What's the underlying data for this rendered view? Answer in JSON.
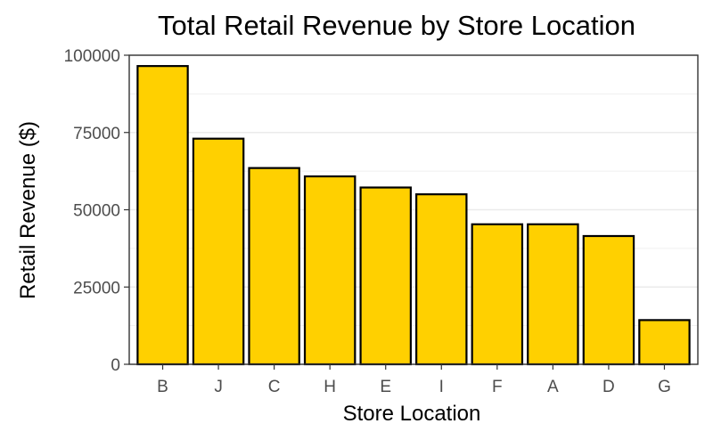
{
  "chart_data": {
    "type": "bar",
    "title": "Total Retail Revenue by Store Location",
    "xlabel": "Store Location",
    "ylabel": "Retail Revenue ($)",
    "categories": [
      "B",
      "J",
      "C",
      "H",
      "E",
      "I",
      "F",
      "A",
      "D",
      "G"
    ],
    "values": [
      96500,
      73000,
      63500,
      60800,
      57200,
      55000,
      45300,
      45300,
      41500,
      14300
    ],
    "ylim": [
      0,
      100000
    ],
    "yticks": [
      "0",
      "25000",
      "50000",
      "75000",
      "100000"
    ],
    "ytick_values": [
      0,
      25000,
      50000,
      75000,
      100000
    ],
    "grid": true,
    "legend": "none",
    "bar_fill": "#ffd000",
    "bar_stroke": "#000000",
    "grid_color": "#ebebeb",
    "panel_border": "#333333"
  }
}
